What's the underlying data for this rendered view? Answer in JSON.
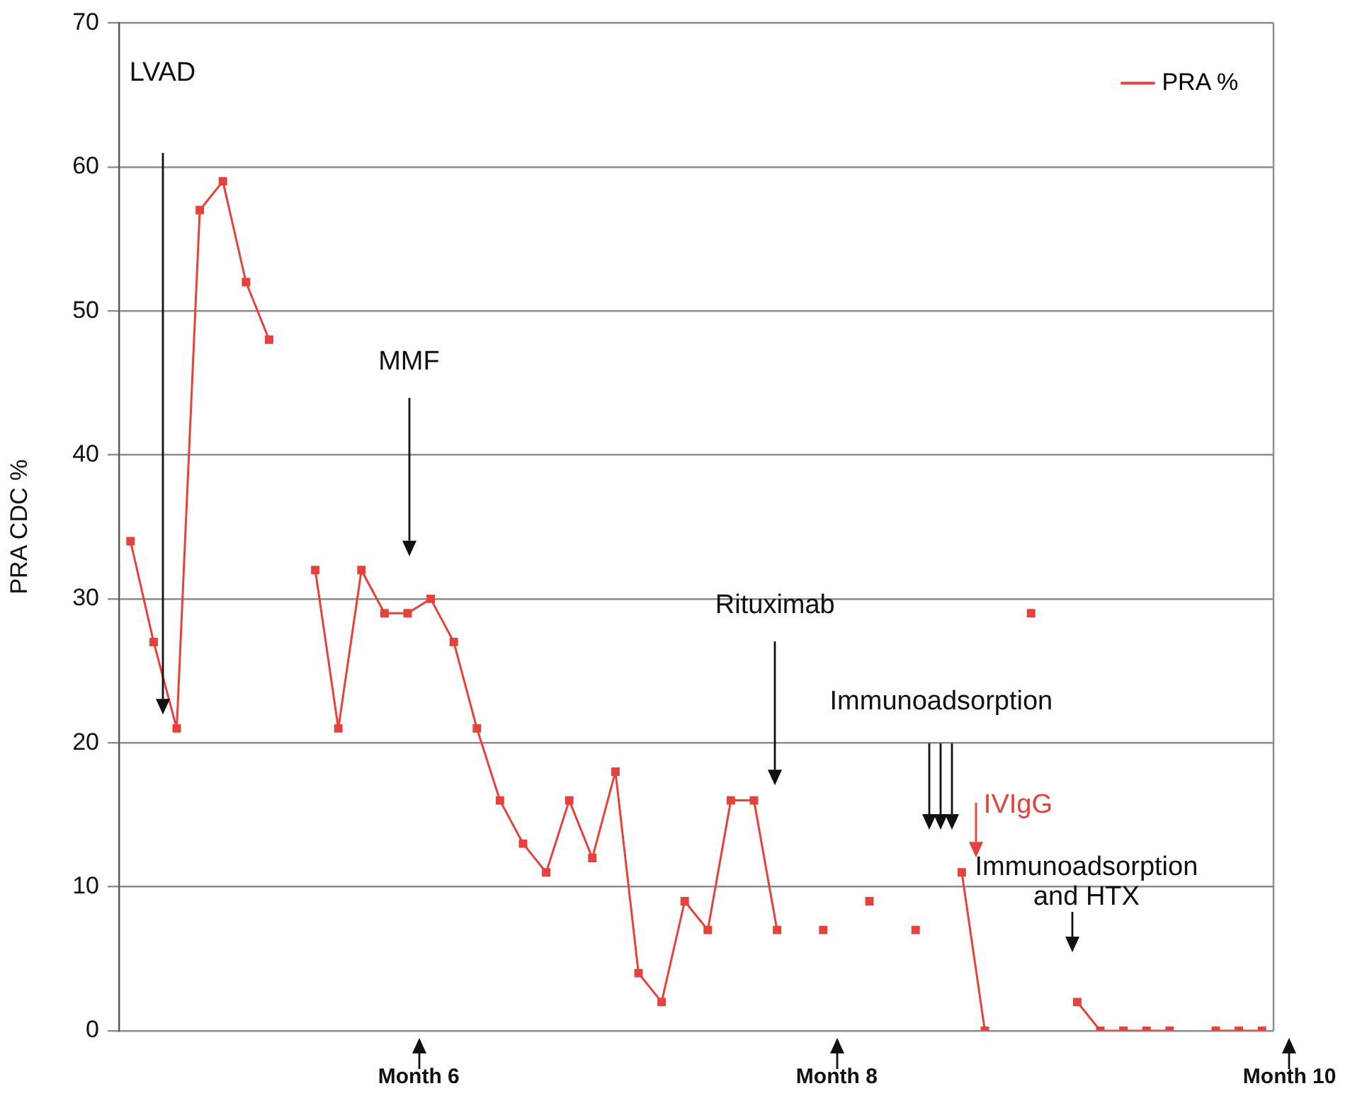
{
  "chart_data": {
    "type": "line",
    "ylabel": "PRA CDC %",
    "categories": [
      null,
      null,
      null,
      null,
      null,
      null,
      null,
      null,
      null,
      null,
      null,
      null,
      null,
      null,
      null,
      null,
      null,
      null,
      null,
      null,
      null,
      null,
      null,
      null,
      null,
      null,
      null,
      null,
      null,
      null,
      null,
      null,
      null,
      null,
      null,
      null,
      null,
      null,
      null,
      null,
      null,
      null,
      null,
      null,
      null,
      null,
      null,
      null,
      null,
      null
    ],
    "series": [
      {
        "name": "PRA %",
        "color": "#e8403a",
        "values": [
          34,
          27,
          21,
          57,
          59,
          52,
          48,
          null,
          32,
          21,
          32,
          29,
          29,
          30,
          27,
          21,
          16,
          13,
          11,
          16,
          12,
          18,
          4,
          2,
          9,
          7,
          16,
          16,
          7,
          null,
          7,
          null,
          9,
          null,
          7,
          null,
          11,
          0,
          null,
          29,
          null,
          2,
          0,
          0,
          0,
          0,
          null,
          0,
          0,
          0
        ]
      }
    ],
    "ylim": [
      0,
      70
    ],
    "yticks": [
      0,
      10,
      20,
      30,
      40,
      50,
      60,
      70
    ],
    "grid": "y",
    "legend": "top right",
    "marker": "square",
    "line_style": "solid",
    "tick_labels": "y",
    "annotations": [
      "LVAD",
      "MMF",
      "Rituximab",
      "Immunoadsorption",
      "IVIgG",
      "Immunoadsorption and HTX",
      "Month 6",
      "Month 8",
      "Month 10"
    ]
  }
}
